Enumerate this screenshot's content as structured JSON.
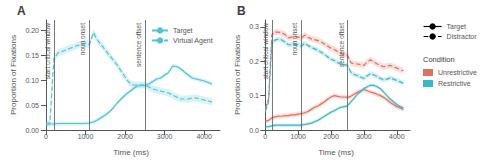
{
  "chart_data": [
    {
      "type": "line",
      "title": "A",
      "x_label": "Time (ms)",
      "y_label": "Proportion of Fixations",
      "xlim": [
        -100,
        4400
      ],
      "ylim": [
        0.0,
        0.22
      ],
      "xticks": [
        0,
        1000,
        2000,
        3000,
        4000
      ],
      "yticks": [
        {
          "value": 0.0,
          "label": "0.00"
        },
        {
          "value": 0.05,
          "label": "0.05"
        },
        {
          "value": 0.1,
          "label": "0.10"
        },
        {
          "value": 0.15,
          "label": "0.15"
        },
        {
          "value": 0.2,
          "label": "0.20"
        }
      ],
      "grid": false,
      "legend": "upper right",
      "vlines": [
        {
          "x": 200,
          "label": "start critical window"
        },
        {
          "x": 1100,
          "label": "noun onset"
        },
        {
          "x": 2500,
          "label": "sentence offset"
        }
      ],
      "x": [
        0,
        100,
        200,
        300,
        400,
        500,
        600,
        700,
        800,
        900,
        1000,
        1100,
        1200,
        1300,
        1400,
        1500,
        1600,
        1700,
        1800,
        1900,
        2000,
        2100,
        2200,
        2300,
        2400,
        2500,
        2600,
        2700,
        2800,
        2900,
        3000,
        3100,
        3200,
        3300,
        3400,
        3500,
        3600,
        3700,
        3800,
        3900,
        4000,
        4100,
        4200
      ],
      "series": [
        {
          "name": "Target",
          "color": "#4fc3d8",
          "line_style": "solid",
          "se": 0.004,
          "values": [
            0.012,
            0.012,
            0.012,
            0.013,
            0.013,
            0.013,
            0.013,
            0.013,
            0.013,
            0.013,
            0.013,
            0.014,
            0.016,
            0.02,
            0.025,
            0.03,
            0.036,
            0.044,
            0.054,
            0.062,
            0.07,
            0.076,
            0.082,
            0.088,
            0.089,
            0.089,
            0.092,
            0.097,
            0.102,
            0.104,
            0.11,
            0.115,
            0.128,
            0.127,
            0.123,
            0.116,
            0.11,
            0.104,
            0.102,
            0.1,
            0.098,
            0.095,
            0.092
          ]
        },
        {
          "name": "Virtual Agent",
          "color": "#4fc3d8",
          "line_style": "dashed",
          "se": 0.007,
          "values": [
            0.012,
            0.014,
            0.142,
            0.154,
            0.157,
            0.16,
            0.163,
            0.166,
            0.169,
            0.171,
            0.174,
            0.171,
            0.195,
            0.18,
            0.17,
            0.16,
            0.15,
            0.14,
            0.13,
            0.118,
            0.106,
            0.095,
            0.09,
            0.09,
            0.09,
            0.09,
            0.086,
            0.082,
            0.08,
            0.078,
            0.076,
            0.074,
            0.07,
            0.066,
            0.062,
            0.062,
            0.062,
            0.064,
            0.064,
            0.062,
            0.06,
            0.058,
            0.056
          ]
        }
      ]
    },
    {
      "type": "line",
      "title": "B",
      "x_label": "Time (ms)",
      "y_label": "Proportion of Fixations",
      "xlim": [
        -100,
        4400
      ],
      "ylim": [
        0.0,
        0.32
      ],
      "xticks": [
        0,
        1000,
        2000,
        3000,
        4000
      ],
      "yticks": [
        {
          "value": 0.0,
          "label": "0.0"
        },
        {
          "value": 0.1,
          "label": "0.1"
        },
        {
          "value": 0.2,
          "label": "0.2"
        },
        {
          "value": 0.3,
          "label": "0.3"
        }
      ],
      "grid": false,
      "legend": "right",
      "legend_title": "Condition",
      "vlines": [
        {
          "x": 200,
          "label": "start critical window"
        },
        {
          "x": 1100,
          "label": "noun onset"
        },
        {
          "x": 2500,
          "label": "sentence offset"
        }
      ],
      "x": [
        0,
        100,
        200,
        300,
        400,
        500,
        600,
        700,
        800,
        900,
        1000,
        1100,
        1200,
        1300,
        1400,
        1500,
        1600,
        1700,
        1800,
        1900,
        2000,
        2100,
        2200,
        2300,
        2400,
        2500,
        2600,
        2700,
        2800,
        2900,
        3000,
        3100,
        3200,
        3300,
        3400,
        3500,
        3600,
        3700,
        3800,
        3900,
        4000,
        4100,
        4200
      ],
      "series": [
        {
          "name": "Target",
          "condition": "Unrestrictive",
          "color": "#e07060",
          "line_style": "solid",
          "se": 0.007,
          "values": [
            0.025,
            0.028,
            0.035,
            0.038,
            0.04,
            0.04,
            0.042,
            0.042,
            0.044,
            0.044,
            0.046,
            0.048,
            0.05,
            0.054,
            0.06,
            0.066,
            0.07,
            0.076,
            0.082,
            0.09,
            0.096,
            0.1,
            0.098,
            0.096,
            0.096,
            0.095,
            0.098,
            0.104,
            0.11,
            0.114,
            0.118,
            0.114,
            0.11,
            0.108,
            0.104,
            0.1,
            0.095,
            0.088,
            0.08,
            0.074,
            0.068,
            0.064,
            0.06
          ]
        },
        {
          "name": "Target",
          "condition": "Restrictive",
          "color": "#3ab8c8",
          "line_style": "solid",
          "se": 0.005,
          "values": [
            0.01,
            0.01,
            0.012,
            0.014,
            0.014,
            0.014,
            0.014,
            0.014,
            0.014,
            0.014,
            0.014,
            0.014,
            0.016,
            0.018,
            0.02,
            0.024,
            0.028,
            0.034,
            0.04,
            0.046,
            0.052,
            0.056,
            0.062,
            0.066,
            0.068,
            0.07,
            0.082,
            0.092,
            0.104,
            0.112,
            0.12,
            0.126,
            0.13,
            0.13,
            0.126,
            0.12,
            0.11,
            0.1,
            0.09,
            0.082,
            0.074,
            0.068,
            0.064
          ]
        },
        {
          "name": "Distractor",
          "condition": "Unrestrictive",
          "color": "#e07060",
          "line_style": "dashed",
          "se": 0.009,
          "values": [
            0.062,
            0.09,
            0.278,
            0.285,
            0.285,
            0.282,
            0.278,
            0.268,
            0.27,
            0.272,
            0.27,
            0.268,
            0.276,
            0.27,
            0.265,
            0.263,
            0.26,
            0.256,
            0.25,
            0.244,
            0.238,
            0.234,
            0.228,
            0.224,
            0.22,
            0.218,
            0.196,
            0.192,
            0.192,
            0.19,
            0.188,
            0.198,
            0.204,
            0.198,
            0.192,
            0.188,
            0.184,
            0.186,
            0.188,
            0.184,
            0.18,
            0.176,
            0.172
          ]
        },
        {
          "name": "Distractor",
          "condition": "Restrictive",
          "color": "#3ab8c8",
          "line_style": "dashed",
          "se": 0.007,
          "values": [
            0.054,
            0.082,
            0.252,
            0.262,
            0.264,
            0.262,
            0.256,
            0.248,
            0.248,
            0.25,
            0.248,
            0.244,
            0.252,
            0.246,
            0.24,
            0.236,
            0.232,
            0.226,
            0.22,
            0.212,
            0.206,
            0.202,
            0.196,
            0.192,
            0.19,
            0.188,
            0.168,
            0.162,
            0.158,
            0.154,
            0.15,
            0.158,
            0.164,
            0.16,
            0.156,
            0.15,
            0.146,
            0.148,
            0.152,
            0.148,
            0.144,
            0.14,
            0.136
          ]
        }
      ]
    }
  ]
}
